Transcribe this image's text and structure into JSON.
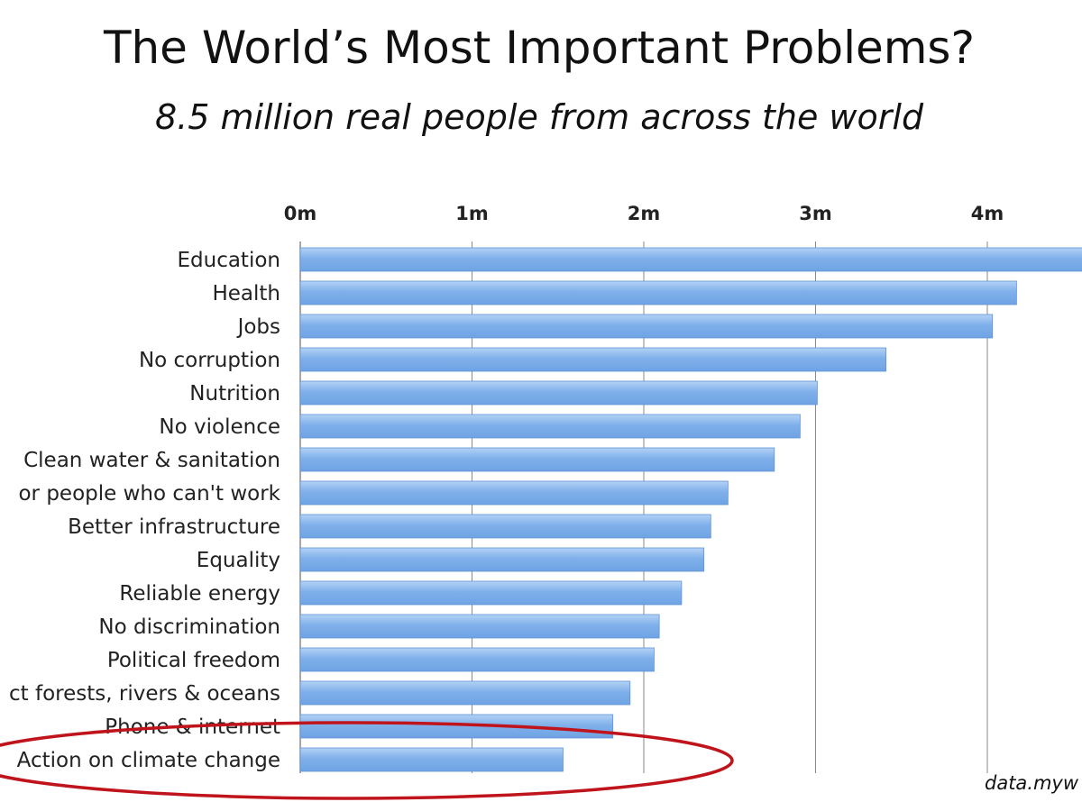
{
  "chart_data": {
    "type": "bar",
    "orientation": "horizontal",
    "title": "The World’s Most Important Problems?",
    "subtitle": "8.5 million real people from across the world",
    "source": "data.myw",
    "axis_tick_labels": [
      "0m",
      "1m",
      "2m",
      "3m",
      "4m"
    ],
    "axis_tick_values": [
      0,
      1,
      2,
      3,
      4
    ],
    "axis_position": "top",
    "xlim": [
      0,
      4.6
    ],
    "grid": true,
    "categories": [
      "Education",
      "Health",
      "Jobs",
      "No corruption",
      "Nutrition",
      "No violence",
      "Clean water & sanitation",
      "or people who can't work",
      "Better infrastructure",
      "Equality",
      "Reliable energy",
      "No discrimination",
      "Political freedom",
      "ct forests, rivers & oceans",
      "Phone & internet",
      "Action on climate change"
    ],
    "values": [
      4.6,
      4.17,
      4.03,
      3.41,
      3.01,
      2.91,
      2.76,
      2.49,
      2.39,
      2.35,
      2.22,
      2.09,
      2.06,
      1.92,
      1.82,
      1.53
    ],
    "bar_color": "#6fa3e3",
    "bar_color_light": "#b4d2f6",
    "highlight_color": "#c0141c",
    "highlighted_category": "Action on climate change"
  }
}
